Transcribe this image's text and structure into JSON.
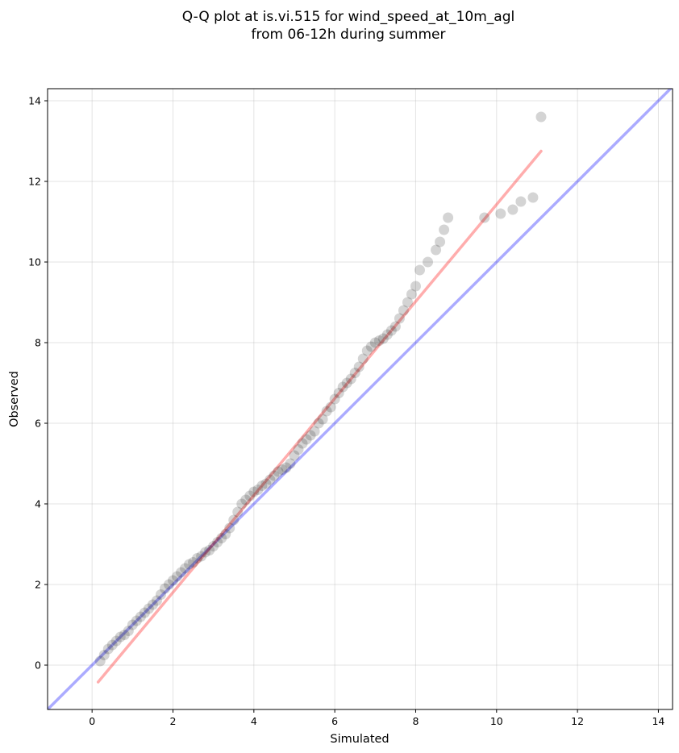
{
  "chart_data": {
    "type": "scatter",
    "title_line1": "Q-Q plot at is.vi.515 for wind_speed_at_10m_agl",
    "title_line2": "from 06-12h during summer",
    "xlabel": "Simulated",
    "ylabel": "Observed",
    "xlim": [
      -1.1,
      14.35
    ],
    "ylim": [
      -1.1,
      14.3
    ],
    "xticks": [
      "0",
      "2",
      "4",
      "6",
      "8",
      "10",
      "12",
      "14"
    ],
    "yticks": [
      "0",
      "2",
      "4",
      "6",
      "8",
      "10",
      "12",
      "14"
    ],
    "grid": true,
    "colors": {
      "points": "#000000",
      "identity_line": "#0000ff",
      "fit_line": "#ff0000"
    },
    "identity_line": {
      "x": [
        -1.1,
        14.35
      ],
      "y": [
        -1.1,
        14.35
      ]
    },
    "fit_line": {
      "x": [
        0.15,
        11.1
      ],
      "y": [
        -0.42,
        12.75
      ]
    },
    "points": {
      "x": [
        0.2,
        0.3,
        0.4,
        0.5,
        0.6,
        0.7,
        0.8,
        0.9,
        1.0,
        1.1,
        1.2,
        1.3,
        1.4,
        1.5,
        1.6,
        1.7,
        1.8,
        1.9,
        2.0,
        2.1,
        2.2,
        2.3,
        2.4,
        2.5,
        2.6,
        2.7,
        2.8,
        2.9,
        3.0,
        3.1,
        3.2,
        3.3,
        3.4,
        3.5,
        3.6,
        3.7,
        3.8,
        3.9,
        4.0,
        4.1,
        4.2,
        4.3,
        4.4,
        4.5,
        4.6,
        4.7,
        4.8,
        4.9,
        5.0,
        5.1,
        5.2,
        5.3,
        5.4,
        5.5,
        5.6,
        5.7,
        5.8,
        5.9,
        6.0,
        6.1,
        6.2,
        6.3,
        6.4,
        6.5,
        6.6,
        6.7,
        6.8,
        6.9,
        7.0,
        7.1,
        7.2,
        7.3,
        7.4,
        7.5,
        7.6,
        7.7,
        7.8,
        7.9,
        8.0,
        8.1,
        8.3,
        8.5,
        8.6,
        8.7,
        8.8,
        9.7,
        10.1,
        10.4,
        10.6,
        10.9,
        11.1
      ],
      "y": [
        0.1,
        0.25,
        0.4,
        0.5,
        0.6,
        0.7,
        0.75,
        0.85,
        1.0,
        1.1,
        1.2,
        1.3,
        1.4,
        1.5,
        1.6,
        1.75,
        1.9,
        2.0,
        2.1,
        2.2,
        2.3,
        2.4,
        2.5,
        2.55,
        2.65,
        2.7,
        2.8,
        2.85,
        2.95,
        3.05,
        3.15,
        3.25,
        3.4,
        3.6,
        3.8,
        4.0,
        4.1,
        4.2,
        4.3,
        4.35,
        4.45,
        4.5,
        4.6,
        4.7,
        4.8,
        4.85,
        4.9,
        5.0,
        5.2,
        5.35,
        5.5,
        5.6,
        5.7,
        5.8,
        6.0,
        6.1,
        6.3,
        6.4,
        6.6,
        6.75,
        6.9,
        7.0,
        7.1,
        7.25,
        7.4,
        7.6,
        7.8,
        7.9,
        8.0,
        8.05,
        8.1,
        8.2,
        8.3,
        8.4,
        8.6,
        8.8,
        9.0,
        9.2,
        9.4,
        9.8,
        10.0,
        10.3,
        10.5,
        10.8,
        11.1,
        11.1,
        11.2,
        11.3,
        11.5,
        11.6,
        13.6
      ]
    }
  }
}
